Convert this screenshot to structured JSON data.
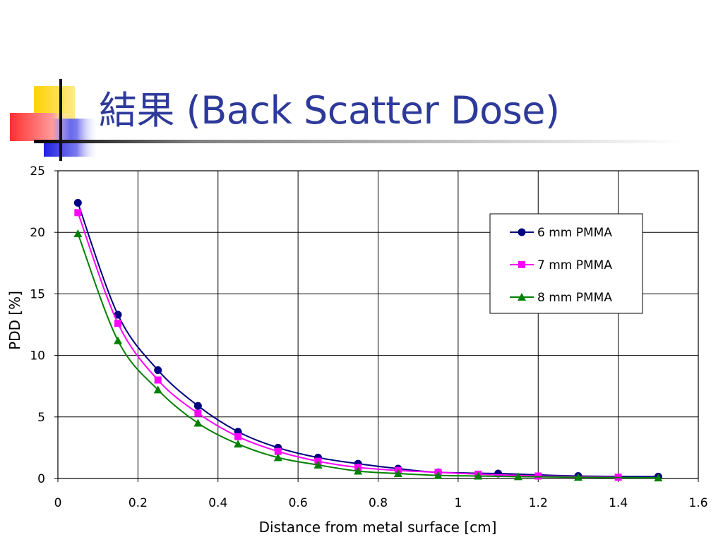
{
  "slide": {
    "title": "結果 (Back Scatter Dose)",
    "accent_colors": {
      "yellow": "#ffd200",
      "red": "#ff3b3b",
      "blue": "#2b2be0",
      "title_blue": "#2e3a9a"
    }
  },
  "chart_data": {
    "type": "line",
    "xlabel": "Distance from metal surface [cm]",
    "ylabel": "PDD [%]",
    "xlim": [
      0,
      1.6
    ],
    "ylim": [
      0,
      25
    ],
    "xticks": [
      0,
      0.2,
      0.4,
      0.6,
      0.8,
      1,
      1.2,
      1.4,
      1.6
    ],
    "yticks": [
      0,
      5,
      10,
      15,
      20,
      25
    ],
    "grid": true,
    "legend_position": "top-right",
    "series": [
      {
        "name": "6 mm PMMA",
        "color": "#000080",
        "marker": "circle",
        "x": [
          0.05,
          0.15,
          0.25,
          0.35,
          0.45,
          0.55,
          0.65,
          0.75,
          0.85,
          0.95,
          1.1,
          1.3,
          1.5
        ],
        "y": [
          22.4,
          13.3,
          8.8,
          5.9,
          3.8,
          2.5,
          1.7,
          1.2,
          0.8,
          0.5,
          0.4,
          0.2,
          0.15
        ]
      },
      {
        "name": "7 mm PMMA",
        "color": "#ff00ff",
        "marker": "square",
        "x": [
          0.05,
          0.15,
          0.25,
          0.35,
          0.45,
          0.55,
          0.65,
          0.75,
          0.85,
          0.95,
          1.05,
          1.2,
          1.4
        ],
        "y": [
          21.6,
          12.6,
          8.0,
          5.3,
          3.4,
          2.2,
          1.4,
          0.9,
          0.65,
          0.5,
          0.35,
          0.2,
          0.1
        ]
      },
      {
        "name": "8 mm PMMA",
        "color": "#008000",
        "marker": "triangle",
        "x": [
          0.05,
          0.15,
          0.25,
          0.35,
          0.45,
          0.55,
          0.65,
          0.75,
          0.85,
          0.95,
          1.05,
          1.15,
          1.3,
          1.5
        ],
        "y": [
          19.9,
          11.2,
          7.2,
          4.5,
          2.8,
          1.7,
          1.1,
          0.6,
          0.4,
          0.25,
          0.2,
          0.15,
          0.1,
          0.05
        ]
      }
    ]
  }
}
